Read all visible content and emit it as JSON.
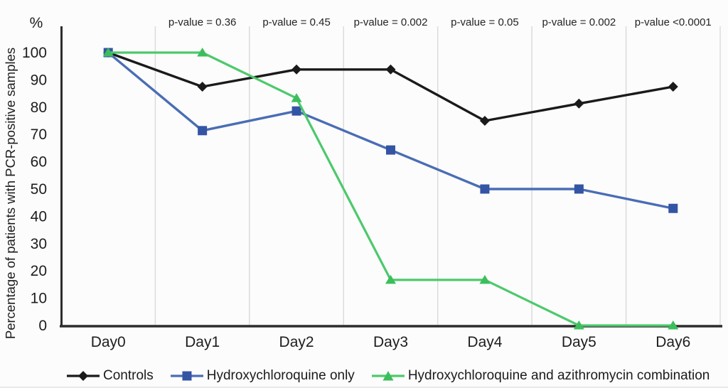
{
  "chart_data": {
    "type": "line",
    "unit_label": "%",
    "ylabel": "Percentage of patients with PCR-positive samples",
    "categories": [
      "Day0",
      "Day1",
      "Day2",
      "Day3",
      "Day4",
      "Day5",
      "Day6"
    ],
    "yticks": [
      0,
      10,
      20,
      30,
      40,
      50,
      60,
      70,
      80,
      90,
      100
    ],
    "ylim": [
      0,
      100
    ],
    "grid": "vertical gridlines between categories",
    "legend_position": "bottom",
    "colors": {
      "axis": "#2d2d2d",
      "gridline": "#d9d9d9",
      "controls": "#1a1a1a",
      "hcq_line": "#4a6db5",
      "hcq_marker": "#3454a4",
      "combo_line": "#4cc96c",
      "combo_marker": "#3cbe5c"
    },
    "pvalues": [
      {
        "category": "Day1",
        "label": "p-value = 0.36"
      },
      {
        "category": "Day2",
        "label": "p-value = 0.45"
      },
      {
        "category": "Day3",
        "label": "p-value = 0.002"
      },
      {
        "category": "Day4",
        "label": "p-value = 0.05"
      },
      {
        "category": "Day5",
        "label": "p-value = 0.002"
      },
      {
        "category": "Day6",
        "label": "p-value <0.0001"
      }
    ],
    "series": [
      {
        "name": "Controls",
        "marker": "diamond",
        "line_color": "#1a1a1a",
        "marker_color": "#1a1a1a",
        "values": [
          100,
          87.5,
          93.8,
          93.8,
          75,
          81.3,
          87.5
        ]
      },
      {
        "name": "Hydroxychloroquine only",
        "marker": "square",
        "line_color": "#4a6db5",
        "marker_color": "#3454a4",
        "values": [
          100,
          71.4,
          78.6,
          64.3,
          50,
          50,
          42.9
        ]
      },
      {
        "name": "Hydroxychloroquine and azithromycin combination",
        "marker": "triangle",
        "line_color": "#4cc96c",
        "marker_color": "#3cbe5c",
        "values": [
          100,
          100,
          83.3,
          16.7,
          16.7,
          0,
          0
        ]
      }
    ]
  }
}
